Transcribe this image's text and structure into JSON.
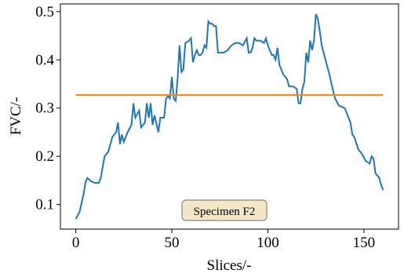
{
  "chart_data": {
    "type": "line",
    "xlabel": "Slices/-",
    "ylabel": "FVC/-",
    "annotation": "Specimen F2",
    "xlim": [
      -8,
      168
    ],
    "xticks": [
      0,
      50,
      100,
      150
    ],
    "ylim": [
      0.049,
      0.516
    ],
    "yticks": [
      0.1,
      0.2,
      0.3,
      0.4,
      0.5
    ],
    "grid": false,
    "series": [
      {
        "color": "#1f77b4",
        "x": [
          0,
          2,
          4,
          5,
          6,
          8,
          10,
          12,
          13,
          15,
          17,
          19,
          21,
          22,
          23,
          24,
          25,
          27,
          29,
          30,
          31,
          33,
          34,
          36,
          37,
          38,
          39,
          40,
          41,
          43,
          44,
          46,
          47,
          48,
          49,
          50,
          51,
          52,
          53,
          54,
          55,
          56,
          57,
          59,
          60,
          61,
          62,
          63,
          64,
          65,
          66,
          67,
          68,
          69,
          70,
          71,
          72,
          73,
          74,
          75,
          77,
          79,
          81,
          83,
          85,
          87,
          89,
          90,
          91,
          92,
          93,
          94,
          96,
          98,
          99,
          100,
          102,
          103,
          104,
          105,
          106,
          108,
          110,
          111,
          113,
          115,
          116,
          117,
          118,
          119,
          120,
          121,
          122,
          123,
          124,
          125,
          126,
          127,
          128,
          130,
          132,
          134,
          135,
          137,
          140,
          141,
          143,
          144,
          145,
          147,
          149,
          151,
          153,
          154,
          155,
          156,
          158,
          159,
          160
        ],
        "values": [
          0.07,
          0.085,
          0.12,
          0.145,
          0.155,
          0.148,
          0.145,
          0.145,
          0.155,
          0.2,
          0.21,
          0.24,
          0.25,
          0.27,
          0.225,
          0.245,
          0.23,
          0.25,
          0.265,
          0.31,
          0.28,
          0.295,
          0.26,
          0.27,
          0.31,
          0.28,
          0.31,
          0.265,
          0.285,
          0.25,
          0.28,
          0.28,
          0.32,
          0.325,
          0.32,
          0.365,
          0.32,
          0.315,
          0.36,
          0.43,
          0.375,
          0.38,
          0.435,
          0.44,
          0.445,
          0.395,
          0.41,
          0.42,
          0.41,
          0.41,
          0.415,
          0.43,
          0.425,
          0.48,
          0.475,
          0.475,
          0.47,
          0.47,
          0.415,
          0.415,
          0.415,
          0.42,
          0.43,
          0.435,
          0.435,
          0.43,
          0.445,
          0.415,
          0.415,
          0.425,
          0.445,
          0.44,
          0.44,
          0.435,
          0.445,
          0.43,
          0.41,
          0.41,
          0.4,
          0.425,
          0.39,
          0.37,
          0.36,
          0.345,
          0.345,
          0.34,
          0.31,
          0.31,
          0.34,
          0.355,
          0.415,
          0.395,
          0.44,
          0.42,
          0.44,
          0.495,
          0.485,
          0.46,
          0.43,
          0.4,
          0.37,
          0.335,
          0.32,
          0.305,
          0.3,
          0.29,
          0.27,
          0.245,
          0.24,
          0.215,
          0.205,
          0.19,
          0.185,
          0.2,
          0.195,
          0.165,
          0.155,
          0.14,
          0.13
        ]
      },
      {
        "color": "#ff7f0e",
        "x": [
          0,
          160
        ],
        "values": [
          0.327,
          0.327
        ]
      }
    ]
  }
}
